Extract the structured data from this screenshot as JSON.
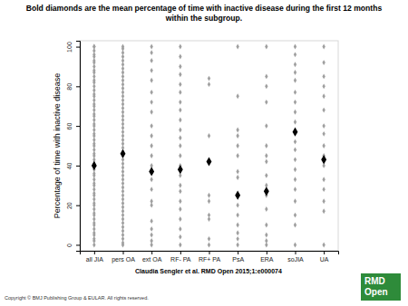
{
  "chart_data": {
    "type": "strip",
    "title": [
      "Bold diamonds are the mean percentage of time with inactive disease during the first 12 months",
      "within the subgroup."
    ],
    "y_label": "Percentage of time with inactive disease",
    "citation": "Claudia Sengler et al. RMD Open 2015;1:e000074",
    "copyright": "Copyright © BMJ Publishing Group & EULAR. All rights reserved.",
    "logo": [
      "RMD",
      "Open"
    ],
    "categories": [
      "all JIA",
      "pers OA",
      "ext OA",
      "RF- PA",
      "RF+ PA",
      "PsA",
      "ERA",
      "soJIA",
      "UA"
    ],
    "points": [
      [
        100,
        100,
        98,
        96,
        95,
        93,
        92,
        90,
        88,
        87,
        85,
        83,
        82,
        80,
        78,
        76,
        75,
        73,
        71,
        70,
        68,
        66,
        65,
        63,
        61,
        60,
        58,
        56,
        55,
        53,
        51,
        50,
        48,
        46,
        45,
        43,
        41,
        40,
        38,
        36,
        35,
        33,
        31,
        30,
        28,
        26,
        25,
        23,
        21,
        20,
        18,
        16,
        15,
        13,
        11,
        10,
        8,
        6,
        5,
        3,
        2,
        0
      ],
      [
        100,
        99,
        97,
        95,
        93,
        91,
        89,
        87,
        85,
        83,
        81,
        79,
        77,
        75,
        73,
        71,
        69,
        67,
        65,
        63,
        61,
        59,
        57,
        55,
        53,
        51,
        49,
        47,
        45,
        43,
        41,
        39,
        37,
        35,
        33,
        31,
        29,
        27,
        25,
        23,
        21,
        19,
        17,
        15,
        13,
        11,
        9,
        7,
        5,
        3,
        1,
        0
      ],
      [
        100,
        97,
        93,
        88,
        83,
        77,
        72,
        67,
        60,
        55,
        50,
        45,
        40,
        33,
        28,
        22,
        20,
        12,
        8,
        5,
        2,
        0
      ],
      [
        100,
        95,
        90,
        86,
        81,
        77,
        72,
        68,
        63,
        58,
        54,
        50,
        45,
        40,
        35,
        30,
        27,
        22,
        18,
        13,
        8,
        4,
        0
      ],
      [
        84,
        81,
        55,
        42,
        25,
        22,
        15,
        13,
        3,
        0
      ],
      [
        100,
        75,
        58,
        55,
        50,
        45,
        37,
        34,
        25,
        20,
        15,
        10,
        6,
        3,
        0
      ],
      [
        100,
        85,
        80,
        72,
        60,
        50,
        45,
        42,
        35,
        30,
        25,
        18,
        10,
        5,
        2,
        0
      ],
      [
        100,
        96,
        91,
        87,
        83,
        77,
        72,
        67,
        62,
        57,
        52,
        48,
        43,
        38,
        33,
        28,
        22,
        15,
        10,
        0
      ],
      [
        100,
        92,
        85,
        80,
        75,
        68,
        60,
        56,
        50,
        45,
        40,
        33,
        28,
        22,
        17,
        0
      ]
    ],
    "means": [
      40,
      46,
      37,
      38,
      42,
      25,
      27,
      57,
      43
    ],
    "color": "#a0a0a0",
    "ylim": [
      -3,
      103
    ],
    "yticks": [
      0,
      20,
      40,
      60,
      80,
      100
    ]
  }
}
